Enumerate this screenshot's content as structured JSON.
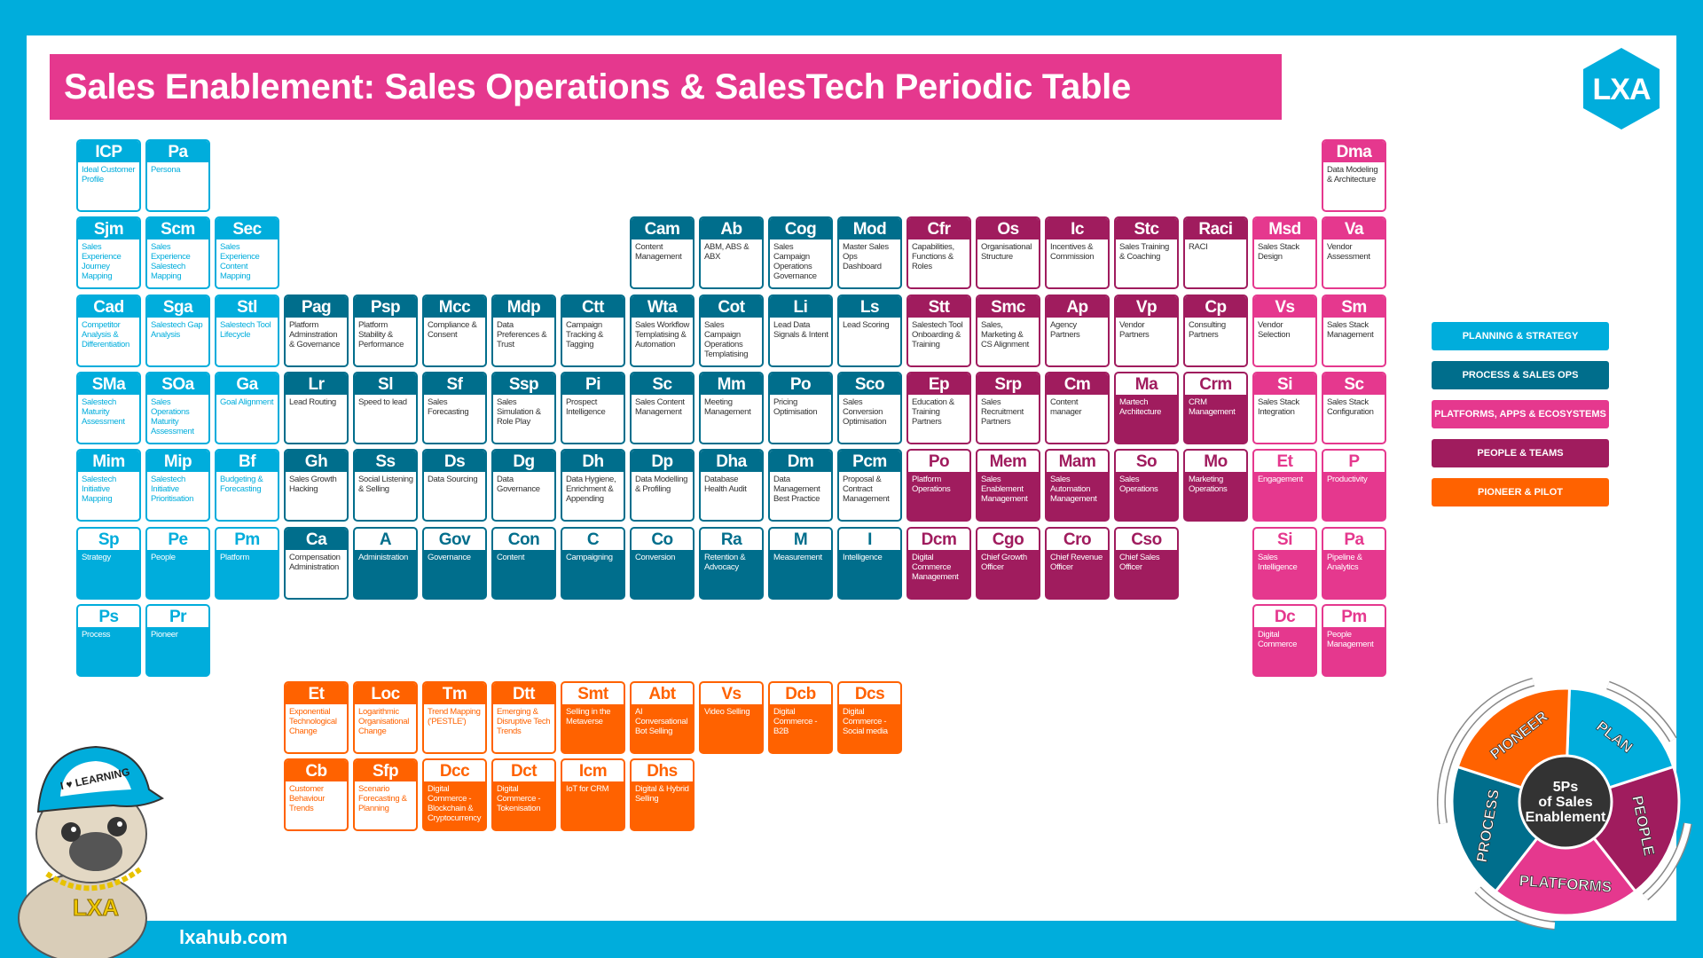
{
  "title": "Sales Enablement: Sales Operations & SalesTech Periodic Table",
  "logo_text": "LXA",
  "footer_url": "lxahub.com",
  "colors": {
    "planning": "#00ADDC",
    "process": "#006E8C",
    "platforms": "#E5388E",
    "people": "#A01C5E",
    "pioneer": "#FF6200",
    "frame": "#00ADDC"
  },
  "legend": [
    {
      "label": "PLANNING & STRATEGY",
      "category": "planning"
    },
    {
      "label": "PROCESS & SALES OPS",
      "category": "process"
    },
    {
      "label": "PLATFORMS, APPS & ECOSYSTEMS",
      "category": "platforms"
    },
    {
      "label": "PEOPLE & TEAMS",
      "category": "people"
    },
    {
      "label": "PIONEER & PILOT",
      "category": "pioneer"
    }
  ],
  "wheel": {
    "center_text": [
      "5Ps",
      "of Sales",
      "Enablement"
    ],
    "segments": [
      {
        "label": "PLAN",
        "category": "planning"
      },
      {
        "label": "PEOPLE",
        "category": "people"
      },
      {
        "label": "PLATFORMS",
        "category": "platforms"
      },
      {
        "label": "PROCESS",
        "category": "process"
      },
      {
        "label": "PIONEER",
        "category": "pioneer"
      }
    ]
  },
  "mascot": {
    "cap_text": "I ♥ LEARNING",
    "chain_text": "LXA"
  },
  "table_rows": [
    [
      [
        "ICP",
        "Ideal Customer Profile",
        "planning",
        0
      ],
      [
        "Pa",
        "Persona",
        "planning",
        0
      ],
      null,
      null,
      null,
      null,
      null,
      null,
      null,
      null,
      null,
      null,
      null,
      null,
      null,
      null,
      null,
      null,
      [
        "Dma",
        "Data Modeling & Architecture",
        "platforms",
        0
      ]
    ],
    [
      [
        "Sjm",
        "Sales Experience Journey Mapping",
        "planning",
        0
      ],
      [
        "Scm",
        "Sales Experience Salestech Mapping",
        "planning",
        0
      ],
      [
        "Sec",
        "Sales Experience Content Mapping",
        "planning",
        0
      ],
      null,
      null,
      null,
      null,
      null,
      [
        "Cam",
        "Content Management",
        "process",
        0
      ],
      [
        "Ab",
        "ABM, ABS & ABX",
        "process",
        0
      ],
      [
        "Cog",
        "Sales Campaign Operations Governance",
        "process",
        0
      ],
      [
        "Mod",
        "Master Sales Ops Dashboard",
        "process",
        0
      ],
      [
        "Cfr",
        "Capabilities, Functions & Roles",
        "people",
        0
      ],
      [
        "Os",
        "Organisational Structure",
        "people",
        0
      ],
      [
        "Ic",
        "Incentives & Commission",
        "people",
        0
      ],
      [
        "Stc",
        "Sales Training & Coaching",
        "people",
        0
      ],
      [
        "Raci",
        "RACI",
        "people",
        0
      ],
      [
        "Msd",
        "Sales Stack Design",
        "platforms",
        0
      ],
      [
        "Va",
        "Vendor Assessment",
        "platforms",
        0
      ]
    ],
    [
      [
        "Cad",
        "Competitor Analysis & Differentiation",
        "planning",
        0
      ],
      [
        "Sga",
        "Salestech Gap Analysis",
        "planning",
        0
      ],
      [
        "Stl",
        "Salestech Tool Lifecycle",
        "planning",
        0
      ],
      [
        "Pag",
        "Platform Adminstration & Governance",
        "process",
        0
      ],
      [
        "Psp",
        "Platform Stability & Performance",
        "process",
        0
      ],
      [
        "Mcc",
        "Compliance & Consent",
        "process",
        0
      ],
      [
        "Mdp",
        "Data Preferences & Trust",
        "process",
        0
      ],
      [
        "Ctt",
        "Campaign Tracking & Tagging",
        "process",
        0
      ],
      [
        "Wta",
        "Sales Workflow Templatising & Automation",
        "process",
        0
      ],
      [
        "Cot",
        "Sales Campaign Operations Templatising",
        "process",
        0
      ],
      [
        "Li",
        "Lead Data Signals & Intent",
        "process",
        0
      ],
      [
        "Ls",
        "Lead Scoring",
        "process",
        0
      ],
      [
        "Stt",
        "Salestech Tool Onboarding & Training",
        "people",
        0
      ],
      [
        "Smc",
        "Sales, Marketing & CS Alignment",
        "people",
        0
      ],
      [
        "Ap",
        "Agency Partners",
        "people",
        0
      ],
      [
        "Vp",
        "Vendor Partners",
        "people",
        0
      ],
      [
        "Cp",
        "Consulting Partners",
        "people",
        0
      ],
      [
        "Vs",
        "Vendor Selection",
        "platforms",
        0
      ],
      [
        "Sm",
        "Sales Stack Management",
        "platforms",
        0
      ]
    ],
    [
      [
        "SMa",
        "Salestech Maturity Assessment",
        "planning",
        0
      ],
      [
        "SOa",
        "Sales Operations Maturity Assessment",
        "planning",
        0
      ],
      [
        "Ga",
        "Goal Alignment",
        "planning",
        0
      ],
      [
        "Lr",
        "Lead Routing",
        "process",
        0
      ],
      [
        "Sl",
        "Speed to lead",
        "process",
        0
      ],
      [
        "Sf",
        "Sales Forecasting",
        "process",
        0
      ],
      [
        "Ssp",
        "Sales Simulation & Role Play",
        "process",
        0
      ],
      [
        "Pi",
        "Prospect Intelligence",
        "process",
        0
      ],
      [
        "Sc",
        "Sales Content Management",
        "process",
        0
      ],
      [
        "Mm",
        "Meeting Management",
        "process",
        0
      ],
      [
        "Po",
        "Pricing Optimisation",
        "process",
        0
      ],
      [
        "Sco",
        "Sales Conversion Optimisation",
        "process",
        0
      ],
      [
        "Ep",
        "Education & Training Partners",
        "people",
        0
      ],
      [
        "Srp",
        "Sales Recruitment Partners",
        "people",
        0
      ],
      [
        "Cm",
        "Content manager",
        "people",
        0
      ],
      [
        "Ma",
        "Martech Architecture",
        "people",
        1
      ],
      [
        "Crm",
        "CRM Management",
        "people",
        1
      ],
      [
        "Si",
        "Sales Stack Integration",
        "platforms",
        0
      ],
      [
        "Sc",
        "Sales Stack Configuration",
        "platforms",
        0
      ]
    ],
    [
      [
        "Mim",
        "Salestech Initiative Mapping",
        "planning",
        0
      ],
      [
        "Mip",
        "Salestech Initiative Prioritisation",
        "planning",
        0
      ],
      [
        "Bf",
        "Budgeting & Forecasting",
        "planning",
        0
      ],
      [
        "Gh",
        "Sales Growth Hacking",
        "process",
        0
      ],
      [
        "Ss",
        "Social Listening & Selling",
        "process",
        0
      ],
      [
        "Ds",
        "Data Sourcing",
        "process",
        0
      ],
      [
        "Dg",
        "Data Governance",
        "process",
        0
      ],
      [
        "Dh",
        "Data Hygiene, Enrichment & Appending",
        "process",
        0
      ],
      [
        "Dp",
        "Data Modelling & Profiling",
        "process",
        0
      ],
      [
        "Dha",
        "Database Health Audit",
        "process",
        0
      ],
      [
        "Dm",
        "Data Management Best Practice",
        "process",
        0
      ],
      [
        "Pcm",
        "Proposal & Contract Management",
        "process",
        0
      ],
      [
        "Po",
        "Platform Operations",
        "people",
        1
      ],
      [
        "Mem",
        "Sales Enablement Management",
        "people",
        1
      ],
      [
        "Mam",
        "Sales Automation Management",
        "people",
        1
      ],
      [
        "So",
        "Sales Operations",
        "people",
        1
      ],
      [
        "Mo",
        "Marketing Operations",
        "people",
        1
      ],
      [
        "Et",
        "Engagement",
        "platforms",
        1
      ],
      [
        "P",
        "Productivity",
        "platforms",
        1
      ]
    ],
    [
      [
        "Sp",
        "Strategy",
        "planning",
        1
      ],
      [
        "Pe",
        "People",
        "planning",
        1
      ],
      [
        "Pm",
        "Platform",
        "planning",
        1
      ],
      [
        "Ca",
        "Compensation Administration",
        "process",
        0
      ],
      [
        "A",
        "Administration",
        "process",
        1
      ],
      [
        "Gov",
        "Governance",
        "process",
        1
      ],
      [
        "Con",
        "Content",
        "process",
        1
      ],
      [
        "C",
        "Campaigning",
        "process",
        1
      ],
      [
        "Co",
        "Conversion",
        "process",
        1
      ],
      [
        "Ra",
        "Retention & Advocacy",
        "process",
        1
      ],
      [
        "M",
        "Measurement",
        "process",
        1
      ],
      [
        "I",
        "Intelligence",
        "process",
        1
      ],
      [
        "Dcm",
        "Digital Commerce Management",
        "people",
        1
      ],
      [
        "Cgo",
        "Chief Growth Officer",
        "people",
        1
      ],
      [
        "Cro",
        "Chief Revenue Officer",
        "people",
        1
      ],
      [
        "Cso",
        "Chief Sales Officer",
        "people",
        1
      ],
      null,
      [
        "Si",
        "Sales Intelligence",
        "platforms",
        1
      ],
      [
        "Pa",
        "Pipeline & Analytics",
        "platforms",
        1
      ]
    ],
    [
      [
        "Ps",
        "Process",
        "planning",
        1
      ],
      [
        "Pr",
        "Pioneer",
        "planning",
        1
      ],
      null,
      null,
      null,
      null,
      null,
      null,
      null,
      null,
      null,
      null,
      null,
      null,
      null,
      null,
      null,
      [
        "Dc",
        "Digital Commerce",
        "platforms",
        1
      ],
      [
        "Pm",
        "People Management",
        "platforms",
        1
      ]
    ],
    [
      null,
      null,
      null,
      [
        "Et",
        "Exponential Technological Change",
        "pioneer",
        0
      ],
      [
        "Loc",
        "Logarithmic Organisational Change",
        "pioneer",
        0
      ],
      [
        "Tm",
        "Trend Mapping ('PESTLE')",
        "pioneer",
        0
      ],
      [
        "Dtt",
        "Emerging & Disruptive Tech Trends",
        "pioneer",
        0
      ],
      [
        "Smt",
        "Selling in the Metaverse",
        "pioneer",
        1
      ],
      [
        "Abt",
        "AI Conversational Bot Selling",
        "pioneer",
        1
      ],
      [
        "Vs",
        "Video Selling",
        "pioneer",
        1
      ],
      [
        "Dcb",
        "Digital Commerce - B2B",
        "pioneer",
        1
      ],
      [
        "Dcs",
        "Digital Commerce - Social media",
        "pioneer",
        1
      ]
    ],
    [
      null,
      null,
      null,
      [
        "Cb",
        "Customer Behaviour Trends",
        "pioneer",
        0
      ],
      [
        "Sfp",
        "Scenario Forecasting & Planning",
        "pioneer",
        0
      ],
      [
        "Dcc",
        "Digital Commerce - Blockchain & Cryptocurrency",
        "pioneer",
        1
      ],
      [
        "Dct",
        "Digital Commerce - Tokenisation",
        "pioneer",
        1
      ],
      [
        "Icm",
        "IoT for CRM",
        "pioneer",
        1
      ],
      [
        "Dhs",
        "Digital & Hybrid Selling",
        "pioneer",
        1
      ]
    ]
  ]
}
